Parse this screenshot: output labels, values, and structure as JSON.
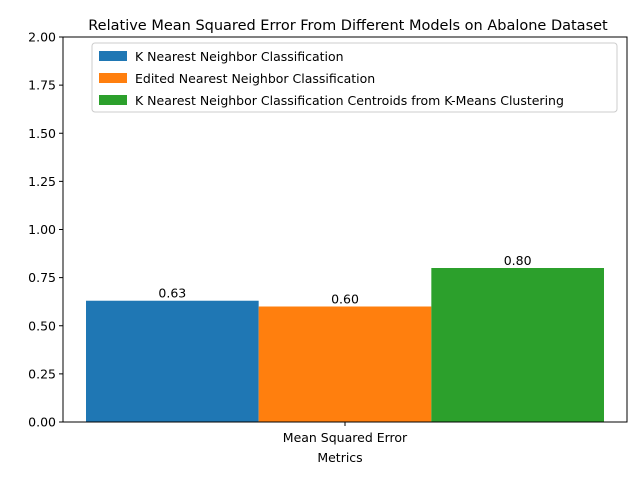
{
  "chart_data": {
    "type": "bar",
    "title": "Relative Mean Squared Error From Different Models on Abalone Dataset",
    "xlabel": "Metrics",
    "ylabel": "",
    "categories": [
      "Mean Squared Error"
    ],
    "ylim": [
      0,
      2.0
    ],
    "yticks": [
      "0.00",
      "0.25",
      "0.50",
      "0.75",
      "1.00",
      "1.25",
      "1.50",
      "1.75",
      "2.00"
    ],
    "series": [
      {
        "name": "K Nearest Neighbor Classification",
        "values": [
          0.63
        ],
        "label": "0.63",
        "color": "#1f77b4"
      },
      {
        "name": "Edited Nearest Neighbor Classification",
        "values": [
          0.6
        ],
        "label": "0.60",
        "color": "#ff7f0e"
      },
      {
        "name": "K Nearest Neighbor Classification Centroids from K-Means Clustering",
        "values": [
          0.8
        ],
        "label": "0.80",
        "color": "#2ca02c"
      }
    ],
    "legend_position": "top-right",
    "grid": false
  }
}
